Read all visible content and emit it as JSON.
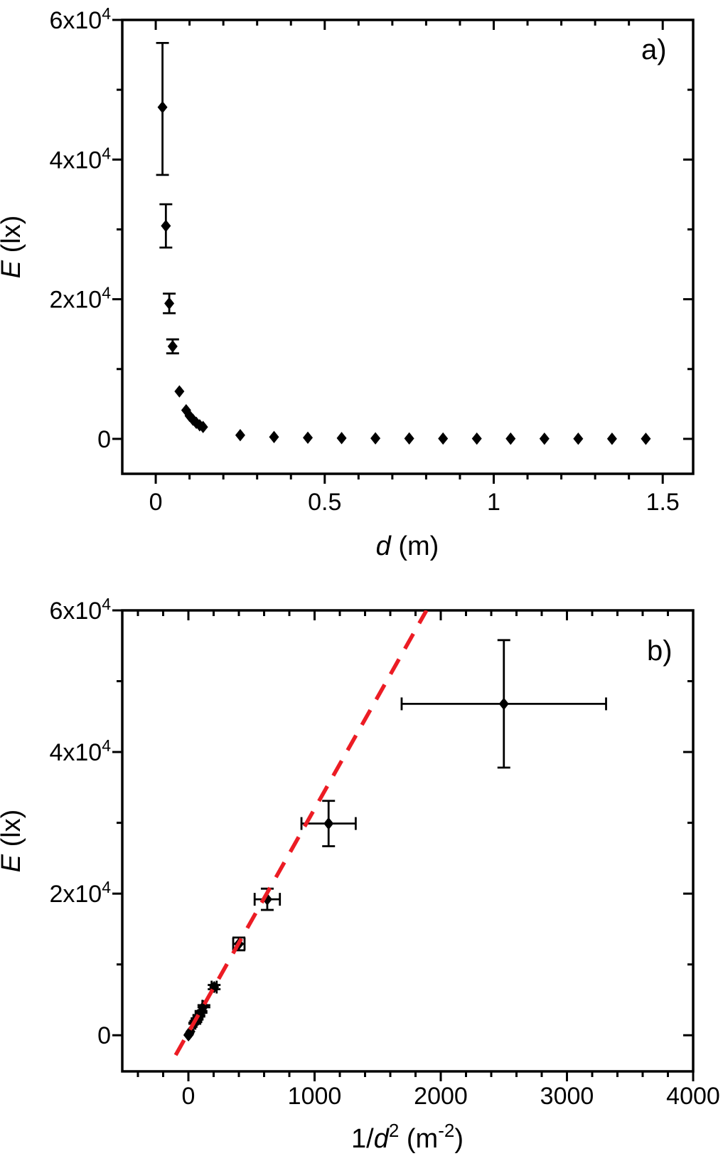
{
  "page": {
    "background": "#ffffff",
    "foreground": "#000000"
  },
  "chart_data": [
    {
      "id": "a",
      "type": "scatter",
      "panel_label": "a)",
      "xlabel_parts": [
        {
          "t": "d",
          "italic": true
        },
        {
          "t": " (m)"
        }
      ],
      "ylabel_parts": [
        {
          "t": "E",
          "italic": true
        },
        {
          "t": " (lx)"
        }
      ],
      "xlim": [
        -0.099,
        1.59
      ],
      "ylim": [
        -5000,
        60000
      ],
      "grid": false,
      "x_major_ticks": [
        {
          "v": 0,
          "label": "0"
        },
        {
          "v": 0.5,
          "label": "0.5"
        },
        {
          "v": 1,
          "label": "1"
        },
        {
          "v": 1.5,
          "label": "1.5"
        }
      ],
      "x_minor_ticks": [
        0.1,
        0.2,
        0.3,
        0.4,
        0.6,
        0.7,
        0.8,
        0.9,
        1.1,
        1.2,
        1.3,
        1.4
      ],
      "y_major_ticks": [
        {
          "v": 0,
          "label": "0"
        },
        {
          "v": 20000,
          "label": "2x10",
          "sup": "4"
        },
        {
          "v": 40000,
          "label": "4x10",
          "sup": "4"
        },
        {
          "v": 60000,
          "label": "6x10",
          "sup": "4"
        }
      ],
      "y_minor_ticks": [
        10000,
        30000,
        50000
      ],
      "marker": {
        "shape": "diamond",
        "color": "#000000"
      },
      "points": [
        {
          "x": 0.02,
          "y": 47500,
          "yep": 9200,
          "yem": 9700
        },
        {
          "x": 0.03,
          "y": 30500,
          "yep": 3100,
          "yem": 3100
        },
        {
          "x": 0.04,
          "y": 19400,
          "yep": 1400,
          "yem": 1400
        },
        {
          "x": 0.05,
          "y": 13250,
          "yep": 1000,
          "yem": 1000
        },
        {
          "x": 0.07,
          "y": 6800
        },
        {
          "x": 0.09,
          "y": 4100
        },
        {
          "x": 0.1,
          "y": 3300
        },
        {
          "x": 0.11,
          "y": 2750
        },
        {
          "x": 0.12,
          "y": 2300
        },
        {
          "x": 0.13,
          "y": 1950
        },
        {
          "x": 0.14,
          "y": 1700
        },
        {
          "x": 0.25,
          "y": 530
        },
        {
          "x": 0.35,
          "y": 270
        },
        {
          "x": 0.45,
          "y": 165
        },
        {
          "x": 0.55,
          "y": 110
        },
        {
          "x": 0.65,
          "y": 80
        },
        {
          "x": 0.75,
          "y": 60
        },
        {
          "x": 0.85,
          "y": 46
        },
        {
          "x": 0.95,
          "y": 37
        },
        {
          "x": 1.05,
          "y": 30
        },
        {
          "x": 1.15,
          "y": 25
        },
        {
          "x": 1.25,
          "y": 21
        },
        {
          "x": 1.35,
          "y": 18
        },
        {
          "x": 1.45,
          "y": 16
        }
      ]
    },
    {
      "id": "b",
      "type": "scatter",
      "panel_label": "b)",
      "xlabel_parts": [
        {
          "t": "1/"
        },
        {
          "t": "d",
          "italic": true
        },
        {
          "t": "2",
          "sup": true
        },
        {
          "t": " (m"
        },
        {
          "t": "-2",
          "sup": true
        },
        {
          "t": ")"
        }
      ],
      "ylabel_parts": [
        {
          "t": "E",
          "italic": true
        },
        {
          "t": " (lx)"
        }
      ],
      "xlim": [
        -524,
        4000
      ],
      "ylim": [
        -5100,
        60000
      ],
      "grid": false,
      "x_major_ticks": [
        {
          "v": 0,
          "label": "0"
        },
        {
          "v": 1000,
          "label": "1000"
        },
        {
          "v": 2000,
          "label": "2000"
        },
        {
          "v": 3000,
          "label": "3000"
        },
        {
          "v": 4000,
          "label": "4000"
        }
      ],
      "x_minor_ticks": [
        -400,
        -200,
        200,
        400,
        600,
        800,
        1200,
        1400,
        1600,
        1800,
        2200,
        2400,
        2600,
        2800,
        3200,
        3400,
        3600,
        3800
      ],
      "y_major_ticks": [
        {
          "v": 0,
          "label": "0"
        },
        {
          "v": 20000,
          "label": "2x10",
          "sup": "4"
        },
        {
          "v": 40000,
          "label": "4x10",
          "sup": "4"
        },
        {
          "v": 60000,
          "label": "6x10",
          "sup": "4"
        }
      ],
      "y_minor_ticks": [
        10000,
        30000,
        50000
      ],
      "marker": {
        "shape": "diamond",
        "color": "#000000"
      },
      "fit_line": {
        "x1": -101,
        "y1": -2800,
        "x2": 1887,
        "y2": 60000,
        "color": "#EC1C24",
        "width": 5.5,
        "dash": [
          24,
          17
        ]
      },
      "points": [
        {
          "x": 2500,
          "y": 46800,
          "xe": 810,
          "yep": 9000,
          "yem": 9000
        },
        {
          "x": 1111,
          "y": 29900,
          "xe": 215,
          "yep": 3200,
          "yem": 3200
        },
        {
          "x": 625,
          "y": 19200,
          "xe": 100,
          "yep": 1500,
          "yem": 1500
        },
        {
          "x": 400,
          "y": 12900,
          "xe": 45,
          "yep": 900,
          "yem": 900
        },
        {
          "x": 204,
          "y": 6800,
          "xe": 20,
          "yep": 300,
          "yem": 300
        },
        {
          "x": 123,
          "y": 4100,
          "xe": 12,
          "yep": 150,
          "yem": 150
        },
        {
          "x": 100,
          "y": 3300,
          "xe": 9,
          "yep": 130,
          "yem": 130
        },
        {
          "x": 83,
          "y": 2750,
          "xe": 7,
          "yep": 110,
          "yem": 110
        },
        {
          "x": 69,
          "y": 2300,
          "xe": 6,
          "yep": 95,
          "yem": 95
        },
        {
          "x": 59,
          "y": 1950,
          "xe": 5,
          "yep": 85,
          "yem": 85
        },
        {
          "x": 51,
          "y": 1700,
          "xe": 4,
          "yep": 75,
          "yem": 75
        },
        {
          "x": 16,
          "y": 530
        },
        {
          "x": 8.2,
          "y": 270
        },
        {
          "x": 4.9,
          "y": 165
        },
        {
          "x": 3.3,
          "y": 110
        },
        {
          "x": 2.4,
          "y": 80
        },
        {
          "x": 1.8,
          "y": 60
        },
        {
          "x": 1.4,
          "y": 46
        },
        {
          "x": 1.1,
          "y": 37
        },
        {
          "x": 0.91,
          "y": 30
        },
        {
          "x": 0.76,
          "y": 25
        },
        {
          "x": 0.64,
          "y": 21
        },
        {
          "x": 0.55,
          "y": 18
        },
        {
          "x": 0.48,
          "y": 16
        }
      ]
    }
  ]
}
